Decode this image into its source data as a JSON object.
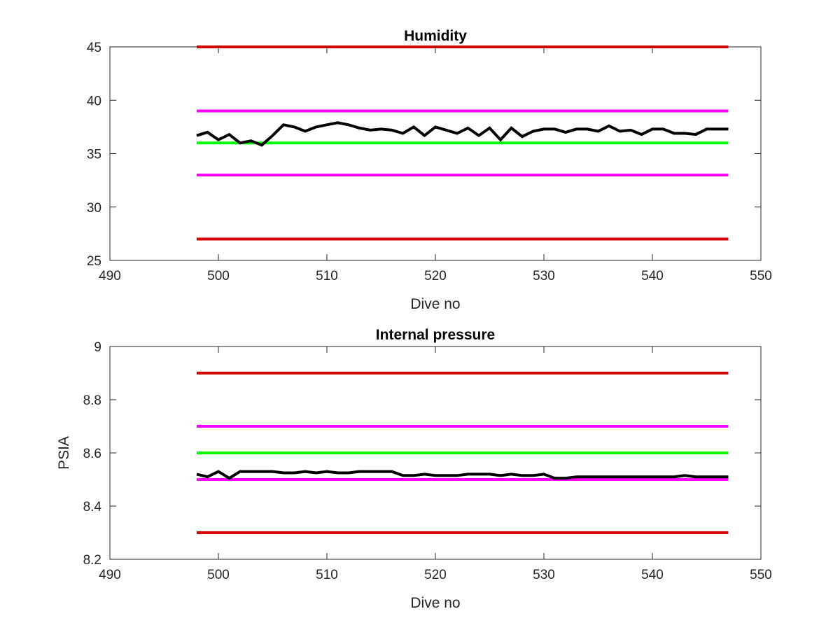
{
  "chart_data": [
    {
      "type": "line",
      "title": "Humidity",
      "xlabel": "Dive no",
      "ylabel": "",
      "xlim": [
        490,
        550
      ],
      "ylim": [
        25,
        45
      ],
      "xticks": [
        490,
        500,
        510,
        520,
        530,
        540,
        550
      ],
      "yticks": [
        25,
        30,
        35,
        40,
        45
      ],
      "grid": false,
      "series": [
        {
          "role": "limit-high",
          "color": "#d50000",
          "x": [
            498,
            547
          ],
          "y": [
            45,
            45
          ]
        },
        {
          "role": "warn-high",
          "color": "#ff00ff",
          "x": [
            498,
            547
          ],
          "y": [
            39,
            39
          ]
        },
        {
          "role": "nominal",
          "color": "#00ff00",
          "x": [
            498,
            547
          ],
          "y": [
            36,
            36
          ]
        },
        {
          "role": "warn-low",
          "color": "#ff00ff",
          "x": [
            498,
            547
          ],
          "y": [
            33,
            33
          ]
        },
        {
          "role": "limit-low",
          "color": "#d50000",
          "x": [
            498,
            547
          ],
          "y": [
            27,
            27
          ]
        },
        {
          "role": "measured",
          "color": "#000000",
          "x": [
            498,
            499,
            500,
            501,
            502,
            503,
            504,
            505,
            506,
            507,
            508,
            509,
            510,
            511,
            512,
            513,
            514,
            515,
            516,
            517,
            518,
            519,
            520,
            521,
            522,
            523,
            524,
            525,
            526,
            527,
            528,
            529,
            530,
            531,
            532,
            533,
            534,
            535,
            536,
            537,
            538,
            539,
            540,
            541,
            542,
            543,
            544,
            545,
            546,
            547
          ],
          "y": [
            36.7,
            37.0,
            36.3,
            36.8,
            36.0,
            36.2,
            35.8,
            36.7,
            37.7,
            37.5,
            37.1,
            37.5,
            37.7,
            37.9,
            37.7,
            37.4,
            37.2,
            37.3,
            37.2,
            36.9,
            37.5,
            36.7,
            37.5,
            37.2,
            36.9,
            37.4,
            36.7,
            37.4,
            36.3,
            37.4,
            36.6,
            37.1,
            37.3,
            37.3,
            37.0,
            37.3,
            37.3,
            37.1,
            37.6,
            37.1,
            37.2,
            36.8,
            37.3,
            37.3,
            36.9,
            36.9,
            36.8,
            37.3,
            37.3,
            37.3
          ]
        }
      ]
    },
    {
      "type": "line",
      "title": "Internal pressure",
      "xlabel": "Dive no",
      "ylabel": "PSIA",
      "xlim": [
        490,
        550
      ],
      "ylim": [
        8.2,
        9
      ],
      "xticks": [
        490,
        500,
        510,
        520,
        530,
        540,
        550
      ],
      "yticks": [
        8.2,
        8.4,
        8.6,
        8.8,
        9
      ],
      "grid": false,
      "series": [
        {
          "role": "limit-high",
          "color": "#d50000",
          "x": [
            498,
            547
          ],
          "y": [
            8.9,
            8.9
          ]
        },
        {
          "role": "warn-high",
          "color": "#ff00ff",
          "x": [
            498,
            547
          ],
          "y": [
            8.7,
            8.7
          ]
        },
        {
          "role": "nominal",
          "color": "#00ff00",
          "x": [
            498,
            547
          ],
          "y": [
            8.6,
            8.6
          ]
        },
        {
          "role": "warn-low",
          "color": "#ff00ff",
          "x": [
            498,
            547
          ],
          "y": [
            8.5,
            8.5
          ]
        },
        {
          "role": "limit-low",
          "color": "#d50000",
          "x": [
            498,
            547
          ],
          "y": [
            8.3,
            8.3
          ]
        },
        {
          "role": "measured",
          "color": "#000000",
          "x": [
            498,
            499,
            500,
            501,
            502,
            503,
            504,
            505,
            506,
            507,
            508,
            509,
            510,
            511,
            512,
            513,
            514,
            515,
            516,
            517,
            518,
            519,
            520,
            521,
            522,
            523,
            524,
            525,
            526,
            527,
            528,
            529,
            530,
            531,
            532,
            533,
            534,
            535,
            536,
            537,
            538,
            539,
            540,
            541,
            542,
            543,
            544,
            545,
            546,
            547
          ],
          "y": [
            8.52,
            8.51,
            8.53,
            8.505,
            8.53,
            8.53,
            8.53,
            8.53,
            8.525,
            8.525,
            8.53,
            8.525,
            8.53,
            8.525,
            8.525,
            8.53,
            8.53,
            8.53,
            8.53,
            8.515,
            8.515,
            8.52,
            8.515,
            8.515,
            8.515,
            8.52,
            8.52,
            8.52,
            8.515,
            8.52,
            8.515,
            8.515,
            8.52,
            8.505,
            8.505,
            8.51,
            8.51,
            8.51,
            8.51,
            8.51,
            8.51,
            8.51,
            8.51,
            8.51,
            8.51,
            8.515,
            8.51,
            8.51,
            8.51,
            8.51
          ]
        }
      ]
    }
  ]
}
